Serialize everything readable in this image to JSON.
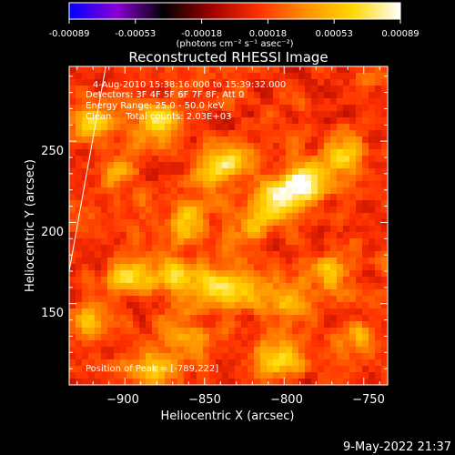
{
  "colorbar": {
    "tick_labels": [
      "-0.00089",
      "-0.00053",
      "-0.00018",
      "0.00018",
      "0.00053",
      "0.00089"
    ],
    "units_label": "(photons cm⁻² s⁻¹ asec⁻²)",
    "range": [
      -0.00089,
      0.00089
    ],
    "palette": [
      "#0000ff",
      "#8a00d8",
      "#000000",
      "#a00000",
      "#ff3000",
      "#ff9000",
      "#ffd800",
      "#ffffff"
    ]
  },
  "chart_data": {
    "type": "heatmap",
    "title": "Reconstructed RHESSI Image",
    "xlabel": "Heliocentric X (arcsec)",
    "ylabel": "Heliocentric Y (arcsec)",
    "xlim": [
      -935,
      -735
    ],
    "ylim": [
      100,
      296
    ],
    "x_ticks": [
      -900,
      -850,
      -800,
      -750
    ],
    "x_tick_labels": [
      "−900",
      "−850",
      "−800",
      "−750"
    ],
    "y_ticks": [
      150,
      200,
      250
    ],
    "y_tick_labels": [
      "150",
      "200",
      "250"
    ],
    "annotations": [
      "4-Aug-2010 15:38:16.000 to 15:39:32.000",
      "Detectors: 3F 4F 5F 6F 7F 8F, Att 0",
      "Energy Range: 25.0 - 50.0 keV",
      "Clean     Total counts: 2.03E+03"
    ],
    "peak_label": "Position of Peak = [-789,222]",
    "peak_position": [
      -789,
      222
    ],
    "limb_line": [
      [
        -935,
        170
      ],
      [
        -912,
        296
      ]
    ],
    "hotspots": [
      {
        "x": -789,
        "y": 222,
        "level": 1.0
      },
      {
        "x": -805,
        "y": 216,
        "level": 0.85
      },
      {
        "x": -878,
        "y": 262,
        "level": 0.85
      },
      {
        "x": -765,
        "y": 240,
        "level": 0.75
      },
      {
        "x": -845,
        "y": 232,
        "level": 0.65
      },
      {
        "x": -920,
        "y": 262,
        "level": 0.6
      },
      {
        "x": -860,
        "y": 200,
        "level": 0.7
      },
      {
        "x": -897,
        "y": 168,
        "level": 0.75
      },
      {
        "x": -870,
        "y": 168,
        "level": 0.7
      },
      {
        "x": -848,
        "y": 162,
        "level": 0.6
      },
      {
        "x": -828,
        "y": 158,
        "level": 0.65
      },
      {
        "x": -817,
        "y": 200,
        "level": 0.55
      },
      {
        "x": -798,
        "y": 150,
        "level": 0.7
      },
      {
        "x": -772,
        "y": 168,
        "level": 0.6
      },
      {
        "x": -920,
        "y": 138,
        "level": 0.55
      },
      {
        "x": -860,
        "y": 128,
        "level": 0.55
      },
      {
        "x": -802,
        "y": 118,
        "level": 0.8
      },
      {
        "x": -757,
        "y": 128,
        "level": 0.5
      },
      {
        "x": -880,
        "y": 110,
        "level": 0.6
      },
      {
        "x": -832,
        "y": 240,
        "level": 0.55
      },
      {
        "x": -905,
        "y": 228,
        "level": 0.5
      }
    ]
  },
  "footer": {
    "timestamp": "9-May-2022 21:37"
  }
}
